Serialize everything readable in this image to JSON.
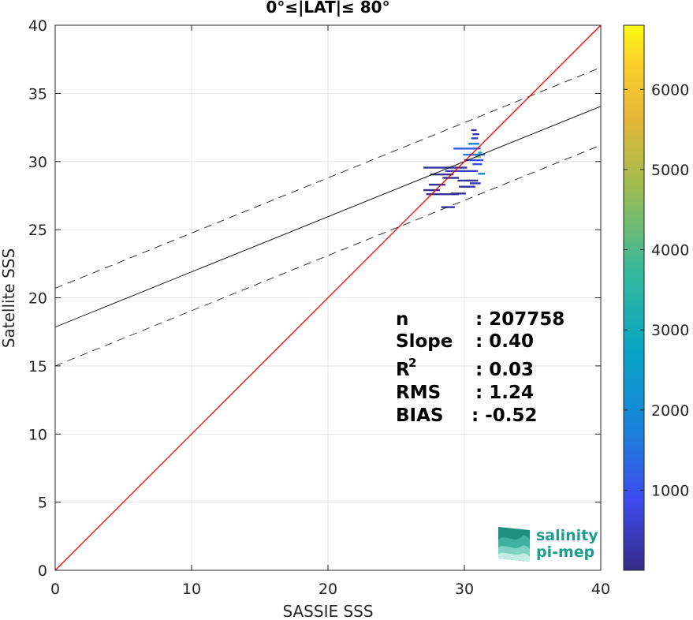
{
  "chart_data": {
    "type": "scatter",
    "title": "0°≤|LAT|≤ 80°",
    "xlabel": "SASSIE SSS",
    "ylabel": "Satellite SSS",
    "xlim": [
      0,
      40
    ],
    "ylim": [
      0,
      40
    ],
    "xticks": [
      "0",
      "10",
      "20",
      "30",
      "40"
    ],
    "yticks": [
      "0",
      "5",
      "10",
      "15",
      "20",
      "25",
      "30",
      "35",
      "40"
    ],
    "grid": true,
    "colorbar": {
      "range": [
        0,
        6800
      ],
      "ticks": [
        "1000",
        "2000",
        "3000",
        "4000",
        "5000",
        "6000"
      ],
      "colormap": "parula"
    },
    "one_to_one_line": {
      "color": "#ff0000",
      "x": [
        0,
        40
      ],
      "y": [
        0,
        40
      ]
    },
    "regression_line": {
      "color": "#000000",
      "x": [
        0,
        40
      ],
      "y": [
        17.85,
        34.05
      ]
    },
    "envelope_lines": [
      {
        "style": "dashed",
        "x": [
          0,
          40
        ],
        "y": [
          20.7,
          36.9
        ]
      },
      {
        "style": "dashed",
        "x": [
          0,
          40
        ],
        "y": [
          15.0,
          31.2
        ]
      }
    ],
    "stats": {
      "rows": [
        {
          "label": "n",
          "value": ": 207758"
        },
        {
          "label": "Slope",
          "value": ": 0.40"
        },
        {
          "label": "R",
          "sup": "2",
          "value": ": 0.03"
        },
        {
          "label": "RMS",
          "value": ": 1.24"
        },
        {
          "label": "BIAS",
          "value": ": -0.52"
        }
      ]
    },
    "density_segments": [
      {
        "x1": 27.0,
        "x2": 30.2,
        "y": 29.55,
        "count": 150
      },
      {
        "x1": 28.6,
        "x2": 31.0,
        "y": 29.3,
        "count": 500
      },
      {
        "x1": 27.5,
        "x2": 29.2,
        "y": 29.05,
        "count": 150
      },
      {
        "x1": 28.4,
        "x2": 29.6,
        "y": 28.8,
        "count": 150
      },
      {
        "x1": 29.5,
        "x2": 31.0,
        "y": 28.6,
        "count": 150
      },
      {
        "x1": 27.4,
        "x2": 28.6,
        "y": 28.3,
        "count": 150
      },
      {
        "x1": 29.6,
        "x2": 30.8,
        "y": 28.15,
        "count": 150
      },
      {
        "x1": 27.0,
        "x2": 28.2,
        "y": 27.9,
        "count": 150
      },
      {
        "x1": 27.2,
        "x2": 29.6,
        "y": 27.6,
        "count": 150
      },
      {
        "x1": 29.0,
        "x2": 30.1,
        "y": 27.65,
        "count": 100
      },
      {
        "x1": 28.3,
        "x2": 29.3,
        "y": 26.65,
        "count": 150
      },
      {
        "x1": 29.2,
        "x2": 31.2,
        "y": 30.95,
        "count": 1200
      },
      {
        "x1": 29.9,
        "x2": 31.5,
        "y": 30.5,
        "count": 1600
      },
      {
        "x1": 30.0,
        "x2": 31.4,
        "y": 30.1,
        "count": 1000
      },
      {
        "x1": 30.3,
        "x2": 31.1,
        "y": 31.3,
        "count": 1800
      },
      {
        "x1": 30.5,
        "x2": 31.0,
        "y": 31.7,
        "count": 600
      },
      {
        "x1": 30.6,
        "x2": 31.1,
        "y": 32.0,
        "count": 300
      },
      {
        "x1": 30.5,
        "x2": 30.9,
        "y": 32.3,
        "count": 200
      },
      {
        "x1": 30.6,
        "x2": 31.3,
        "y": 29.8,
        "count": 900
      },
      {
        "x1": 31.0,
        "x2": 31.5,
        "y": 29.1,
        "count": 2200
      },
      {
        "x1": 30.4,
        "x2": 31.2,
        "y": 28.4,
        "count": 300
      },
      {
        "x1": 31.0,
        "x2": 31.3,
        "y": 30.65,
        "count": 3000
      },
      {
        "x1": 30.8,
        "x2": 31.2,
        "y": 30.35,
        "count": 4500
      }
    ]
  },
  "logo": {
    "line1": "salinity",
    "line2": "pi-mep"
  }
}
